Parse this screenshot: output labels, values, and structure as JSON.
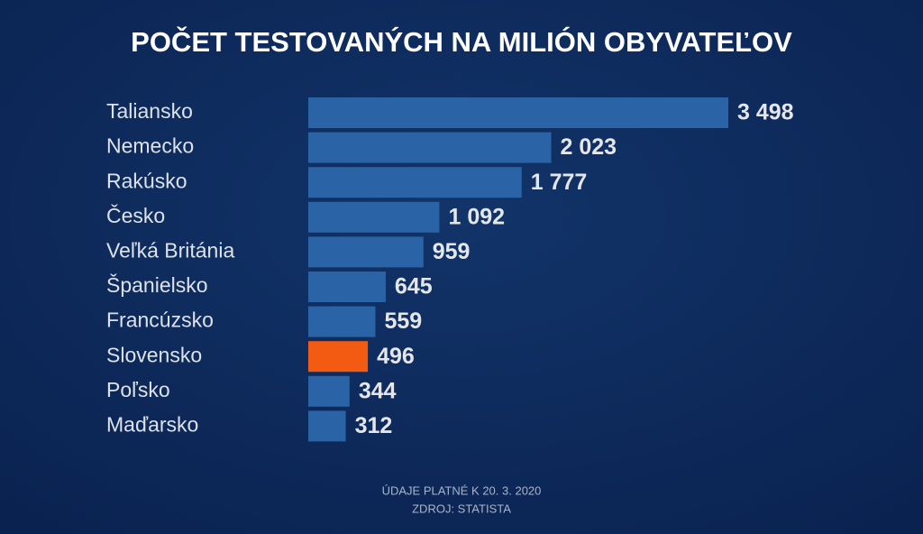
{
  "chart_data": {
    "type": "bar",
    "orientation": "horizontal",
    "title": "POČET TESTOVANÝCH NA MILIÓN OBYVATEĽOV",
    "categories": [
      "Taliansko",
      "Nemecko",
      "Rakúsko",
      "Česko",
      "Veľká Británia",
      "Španielsko",
      "Francúzsko",
      "Slovensko",
      "Poľsko",
      "Maďarsko"
    ],
    "values": [
      3498,
      2023,
      1777,
      1092,
      959,
      645,
      559,
      496,
      344,
      312
    ],
    "value_labels": [
      "3 498",
      "2 023",
      "1 777",
      "1 092",
      "959",
      "645",
      "559",
      "496",
      "344",
      "312"
    ],
    "colors": [
      "#2a64a6",
      "#2a64a6",
      "#2a64a6",
      "#2a64a6",
      "#2a64a6",
      "#2a64a6",
      "#2a64a6",
      "#f35a12",
      "#2a64a6",
      "#2a64a6"
    ],
    "notes": [
      "ÚDAJE PLATNÉ K 20. 3. 2020",
      "ZDROJ: STATISTA"
    ]
  }
}
